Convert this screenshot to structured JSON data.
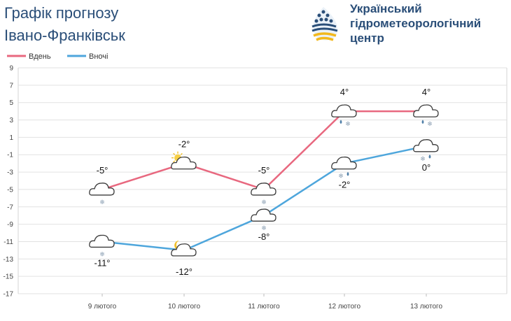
{
  "header": {
    "title_line1": "Графік прогнозу",
    "title_line2": "Івано-Франківськ",
    "org_line1": "Український",
    "org_line2": "гідрометеорологічний",
    "org_line3": "центр"
  },
  "chart_data": {
    "type": "line",
    "categories": [
      "9 лютого",
      "10 лютого",
      "11 лютого",
      "12 лютого",
      "13 лютого"
    ],
    "ylim": [
      -17,
      9
    ],
    "yticks": [
      9,
      7,
      5,
      3,
      1,
      -1,
      -3,
      -5,
      -7,
      -9,
      -11,
      -13,
      -15,
      -17
    ],
    "grid": true,
    "legend_position": "top-left",
    "series": [
      {
        "name": "Вдень",
        "color": "#e8687f",
        "values": [
          -5,
          -2,
          -5,
          4,
          4
        ],
        "labels": [
          "-5°",
          "-2°",
          "-5°",
          "4°",
          "4°"
        ],
        "icons": [
          "cloud-snow-icon",
          "sun-cloud-icon",
          "cloud-snow-icon",
          "cloud-rain-snow-icon",
          "cloud-rain-snow-icon"
        ]
      },
      {
        "name": "Вночі",
        "color": "#4ea6dc",
        "values": [
          -11,
          -12,
          -8,
          -2,
          0
        ],
        "labels": [
          "-11°",
          "-12°",
          "-8°",
          "-2°",
          "0°"
        ],
        "icons": [
          "cloud-snow-icon",
          "moon-cloud-icon",
          "cloud-snow-icon",
          "cloud-snow-rain-icon",
          "cloud-snow-rain-icon"
        ]
      }
    ]
  }
}
